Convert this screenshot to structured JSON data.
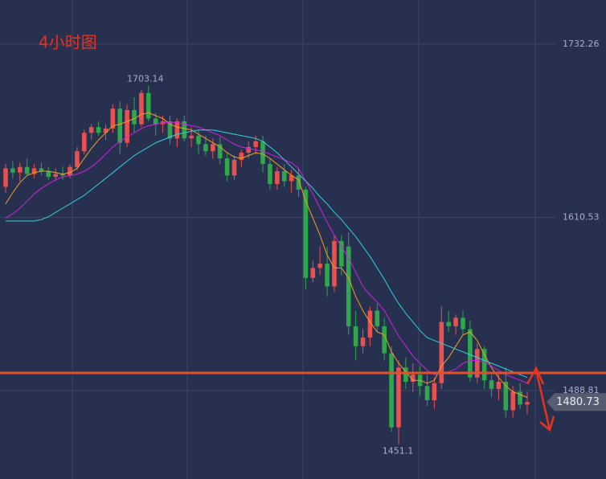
{
  "chart_data": {
    "type": "candlestick",
    "title": "4小时图",
    "open": [
      1632,
      1645,
      1642,
      1646,
      1641,
      1645,
      1643,
      1639,
      1641,
      1640,
      1646,
      1657,
      1670,
      1674,
      1670,
      1673,
      1687,
      1663,
      1686,
      1676,
      1698,
      1680,
      1676,
      1678,
      1666,
      1678,
      1666,
      1668,
      1662,
      1657,
      1662,
      1652,
      1640,
      1651,
      1656,
      1660,
      1664,
      1648,
      1634,
      1643,
      1636,
      1640,
      1630,
      1568,
      1575,
      1578,
      1562,
      1594,
      1590,
      1534,
      1520,
      1526,
      1545,
      1534,
      1515,
      1463,
      1505,
      1495,
      1500,
      1492,
      1482,
      1494,
      1537,
      1534,
      1540,
      1532,
      1498,
      1518,
      1496,
      1490,
      1495,
      1475,
      1488,
      1479
    ],
    "high": [
      1648,
      1650,
      1649,
      1652,
      1648,
      1649,
      1646,
      1645,
      1646,
      1648,
      1660,
      1672,
      1676,
      1678,
      1676,
      1690,
      1692,
      1690,
      1695,
      1700,
      1703.14,
      1684,
      1682,
      1682,
      1680,
      1682,
      1674,
      1672,
      1668,
      1666,
      1667,
      1656,
      1654,
      1658,
      1664,
      1668,
      1668,
      1652,
      1646,
      1648,
      1644,
      1645,
      1632,
      1580,
      1590,
      1590,
      1598,
      1598,
      1600,
      1545,
      1532,
      1548,
      1550,
      1540,
      1520,
      1510,
      1512,
      1508,
      1506,
      1500,
      1498,
      1548,
      1545,
      1542,
      1545,
      1538,
      1522,
      1520,
      1500,
      1500,
      1505,
      1492,
      1494,
      1488
    ],
    "low": [
      1628,
      1638,
      1636,
      1640,
      1638,
      1640,
      1637,
      1636,
      1637,
      1638,
      1644,
      1655,
      1665,
      1668,
      1665,
      1670,
      1655,
      1660,
      1670,
      1674,
      1678,
      1668,
      1670,
      1662,
      1660,
      1664,
      1660,
      1655,
      1654,
      1652,
      1648,
      1636,
      1637,
      1646,
      1652,
      1655,
      1642,
      1630,
      1630,
      1632,
      1628,
      1625,
      1560,
      1565,
      1570,
      1555,
      1558,
      1570,
      1528,
      1510,
      1515,
      1520,
      1530,
      1510,
      1460,
      1451.1,
      1490,
      1488,
      1485,
      1478,
      1476,
      1490,
      1530,
      1528,
      1528,
      1495,
      1494,
      1490,
      1484,
      1482,
      1470,
      1470,
      1476,
      1472
    ],
    "close": [
      1645,
      1642,
      1646,
      1641,
      1645,
      1643,
      1639,
      1641,
      1640,
      1646,
      1657,
      1670,
      1674,
      1670,
      1673,
      1687,
      1663,
      1686,
      1676,
      1698,
      1680,
      1676,
      1678,
      1666,
      1678,
      1666,
      1668,
      1662,
      1657,
      1662,
      1652,
      1640,
      1651,
      1656,
      1660,
      1664,
      1648,
      1634,
      1643,
      1636,
      1640,
      1630,
      1568,
      1575,
      1578,
      1562,
      1594,
      1576,
      1534,
      1520,
      1526,
      1545,
      1534,
      1515,
      1463,
      1505,
      1495,
      1500,
      1492,
      1482,
      1494,
      1537,
      1534,
      1540,
      1532,
      1498,
      1518,
      1496,
      1490,
      1495,
      1475,
      1488,
      1479,
      1480.73
    ],
    "up_color": "#e8514f",
    "down_color": "#2ea84a",
    "series": [
      {
        "color": "#f0a020",
        "values": [
          1620,
          1628,
          1635,
          1640,
          1642,
          1643,
          1643,
          1642,
          1641,
          1642,
          1645,
          1652,
          1659,
          1665,
          1670,
          1675,
          1676,
          1678,
          1680,
          1683,
          1684,
          1682,
          1680,
          1676,
          1674,
          1673,
          1672,
          1669,
          1666,
          1663,
          1660,
          1656,
          1653,
          1652,
          1654,
          1656,
          1655,
          1652,
          1648,
          1644,
          1640,
          1637,
          1622,
          1610,
          1598,
          1584,
          1575,
          1575,
          1568,
          1555,
          1545,
          1537,
          1530,
          1528,
          1516,
          1508,
          1502,
          1496,
          1496,
          1494,
          1496,
          1506,
          1512,
          1520,
          1528,
          1530,
          1524,
          1514,
          1505,
          1498,
          1492,
          1488,
          1486,
          1484
        ]
      },
      {
        "color": "#d020e0",
        "values": [
          1610,
          1613,
          1617,
          1622,
          1627,
          1631,
          1634,
          1637,
          1639,
          1640,
          1641,
          1643,
          1646,
          1650,
          1655,
          1660,
          1664,
          1667,
          1670,
          1673,
          1675,
          1676,
          1677,
          1677,
          1677,
          1676,
          1675,
          1674,
          1672,
          1670,
          1668,
          1665,
          1662,
          1660,
          1659,
          1658,
          1657,
          1655,
          1653,
          1651,
          1649,
          1645,
          1636,
          1627,
          1617,
          1607,
          1598,
          1590,
          1582,
          1572,
          1562,
          1556,
          1551,
          1545,
          1536,
          1527,
          1520,
          1513,
          1508,
          1503,
          1500,
          1501,
          1502,
          1504,
          1508,
          1510,
          1510,
          1509,
          1506,
          1503,
          1500,
          1498,
          1496,
          1494
        ]
      },
      {
        "color": "#30d0e0",
        "values": [
          1608,
          1608,
          1608,
          1608,
          1608,
          1609,
          1611,
          1614,
          1617,
          1620,
          1623,
          1626,
          1630,
          1634,
          1638,
          1642,
          1646,
          1650,
          1654,
          1657,
          1660,
          1663,
          1665,
          1667,
          1669,
          1670,
          1671,
          1672,
          1672,
          1672,
          1671,
          1670,
          1669,
          1668,
          1667,
          1666,
          1664,
          1660,
          1656,
          1651,
          1646,
          1641,
          1636,
          1631,
          1625,
          1620,
          1614,
          1609,
          1603,
          1597,
          1590,
          1583,
          1575,
          1567,
          1558,
          1550,
          1543,
          1537,
          1531,
          1526,
          1524,
          1522,
          1520,
          1518,
          1516,
          1514,
          1512,
          1510,
          1508,
          1506,
          1504,
          1502,
          1500,
          1498
        ]
      }
    ],
    "hline": 1501.2,
    "hline_color": "#e0502a",
    "ylim": [
      1426.65,
      1763.33
    ],
    "yticks": [
      1732.26,
      1610.53,
      1488.81
    ],
    "grid": true
  }
}
